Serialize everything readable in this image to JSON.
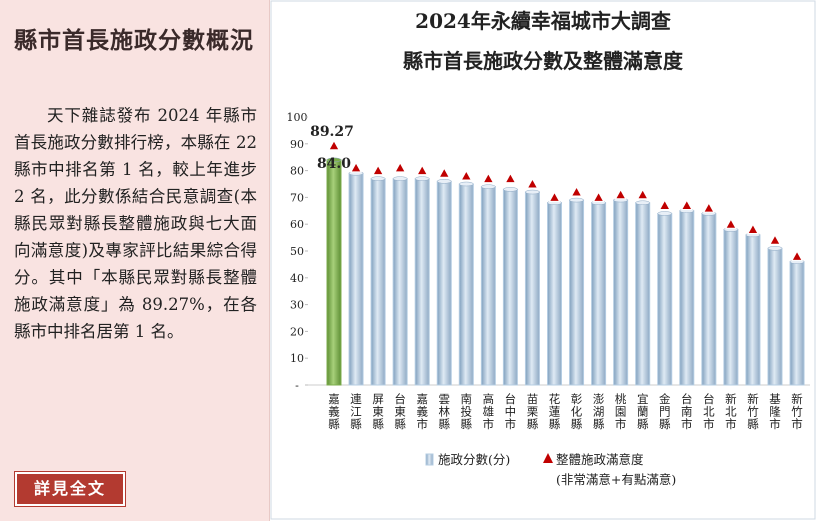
{
  "sidebar": {
    "title": "縣市首長施政分數概況",
    "body": "天下雜誌發布 2024 年縣市首長施政分數排行榜，本縣在 22 縣市中排名第 1 名，較上年進步 2 名，此分數係結合民意調查(本縣民眾對縣長整體施政與七大面向滿意度)及專家評比結果綜合得分。其中「本縣民眾對縣長整體施政滿意度」為 89.27%，在各縣市中排名居第 1 名。",
    "button": "詳見全文"
  },
  "chart_data": {
    "type": "bar-marker",
    "title": "2024年永續幸福城市大調查",
    "subtitle": "縣市首長施政分數及整體滿意度",
    "categories": [
      "嘉義縣",
      "連江縣",
      "屏東縣",
      "台東縣",
      "嘉義市",
      "雲林縣",
      "南投縣",
      "高雄市",
      "台中市",
      "苗栗縣",
      "花蓮縣",
      "彰化縣",
      "澎湖縣",
      "桃園市",
      "宜蘭縣",
      "金門縣",
      "台南市",
      "台北市",
      "新北市",
      "新竹縣",
      "基隆市",
      "新竹市"
    ],
    "series": [
      {
        "name": "施政分數(分)",
        "kind": "bar",
        "color": "#b4cce2",
        "highlight_color": "#7cae4c",
        "values": [
          84.0,
          79,
          77,
          77,
          77,
          76,
          75,
          74,
          73,
          72,
          68,
          69,
          68,
          69,
          68,
          64,
          65,
          64,
          58,
          56,
          51,
          46
        ],
        "value_labels": [
          "84.0",
          null,
          null,
          null,
          null,
          null,
          null,
          null,
          null,
          null,
          null,
          null,
          null,
          null,
          null,
          null,
          null,
          null,
          null,
          null,
          null,
          null
        ]
      },
      {
        "name": "整體施政滿意度",
        "kind": "marker",
        "color": "#c00000",
        "note": "(非常滿意+有點滿意)",
        "values": [
          89.27,
          81,
          80,
          81,
          80,
          79,
          78,
          77,
          77,
          75,
          70,
          72,
          70,
          71,
          71,
          67,
          67,
          66,
          60,
          58,
          54,
          48
        ],
        "value_labels": [
          "89.27",
          null,
          null,
          null,
          null,
          null,
          null,
          null,
          null,
          null,
          null,
          null,
          null,
          null,
          null,
          null,
          null,
          null,
          null,
          null,
          null,
          null
        ]
      }
    ],
    "ylim": [
      0,
      100
    ],
    "yticks": [
      {
        "value": 0,
        "label": "-"
      },
      10,
      20,
      30,
      40,
      50,
      60,
      70,
      80,
      90,
      100
    ],
    "grid": false
  }
}
